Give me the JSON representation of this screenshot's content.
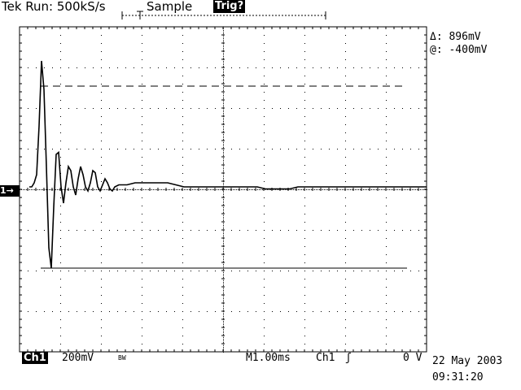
{
  "status": {
    "run_text": "Tek Run: 500kS/s",
    "acq_mode": "Sample",
    "trigger_state": "Trig?"
  },
  "cursors": {
    "delta": "Δ: 896mV",
    "at": "@: -400mV"
  },
  "channel": {
    "label": "Ch1",
    "scale": "200mV",
    "bandwidth_limit": "BW",
    "marker": "1→"
  },
  "horizontal": {
    "timebase": "M1.00ms"
  },
  "trigger": {
    "source": "Ch1",
    "slope_icon": "rising-edge-icon",
    "slope_glyph": "ʃ",
    "level": "0 V"
  },
  "timestamp": {
    "date": "22 May 2003",
    "time": "09:31:20"
  },
  "trace": {
    "time_ms": [
      0.0,
      0.06,
      0.12,
      0.18,
      0.24,
      0.3,
      0.36,
      0.42,
      0.48,
      0.54,
      0.6,
      0.66,
      0.72,
      0.78,
      0.84,
      0.9,
      0.96,
      1.02,
      1.08,
      1.14,
      1.2,
      1.26,
      1.32,
      1.38,
      1.44,
      1.5,
      1.56,
      1.62,
      1.68,
      1.74,
      1.8,
      1.86,
      1.92,
      1.98,
      2.04,
      2.1,
      2.2,
      2.4,
      2.6,
      2.8,
      3.0,
      3.2,
      3.4,
      3.6,
      3.8,
      4.0,
      4.2,
      4.4,
      4.6,
      4.8,
      5.0,
      5.2,
      5.4,
      5.6,
      5.8,
      6.0,
      6.2,
      6.4,
      6.6,
      6.8,
      7.0,
      7.2,
      7.4,
      7.6,
      7.8,
      8.0,
      8.2,
      8.4,
      8.6,
      8.8,
      9.0,
      9.2,
      9.4,
      9.6,
      9.8,
      10.0
    ],
    "volts": [
      0.0,
      0.0,
      0.02,
      0.06,
      0.3,
      0.62,
      0.48,
      0.1,
      -0.3,
      -0.4,
      -0.1,
      0.16,
      0.17,
      0.0,
      -0.08,
      0.02,
      0.1,
      0.08,
      0.0,
      -0.04,
      0.04,
      0.1,
      0.06,
      0.0,
      -0.02,
      0.02,
      0.08,
      0.07,
      0.0,
      -0.02,
      0.01,
      0.04,
      0.02,
      -0.01,
      -0.02,
      0.0,
      0.01,
      0.01,
      0.02,
      0.02,
      0.02,
      0.02,
      0.02,
      0.01,
      0.0,
      0.0,
      0.0,
      0.0,
      0.0,
      0.0,
      0.0,
      0.0,
      0.0,
      0.0,
      -0.01,
      -0.01,
      -0.01,
      -0.01,
      0.0,
      0.0,
      0.0,
      0.0,
      0.0,
      0.0,
      0.0,
      0.0,
      0.0,
      0.0,
      0.0,
      0.0,
      0.0,
      0.0,
      0.0,
      0.0,
      0.0,
      0.0
    ],
    "cursor_upper_v": 0.496,
    "cursor_lower_v": -0.4,
    "v_per_div": 0.2,
    "ms_per_div": 1.0
  }
}
